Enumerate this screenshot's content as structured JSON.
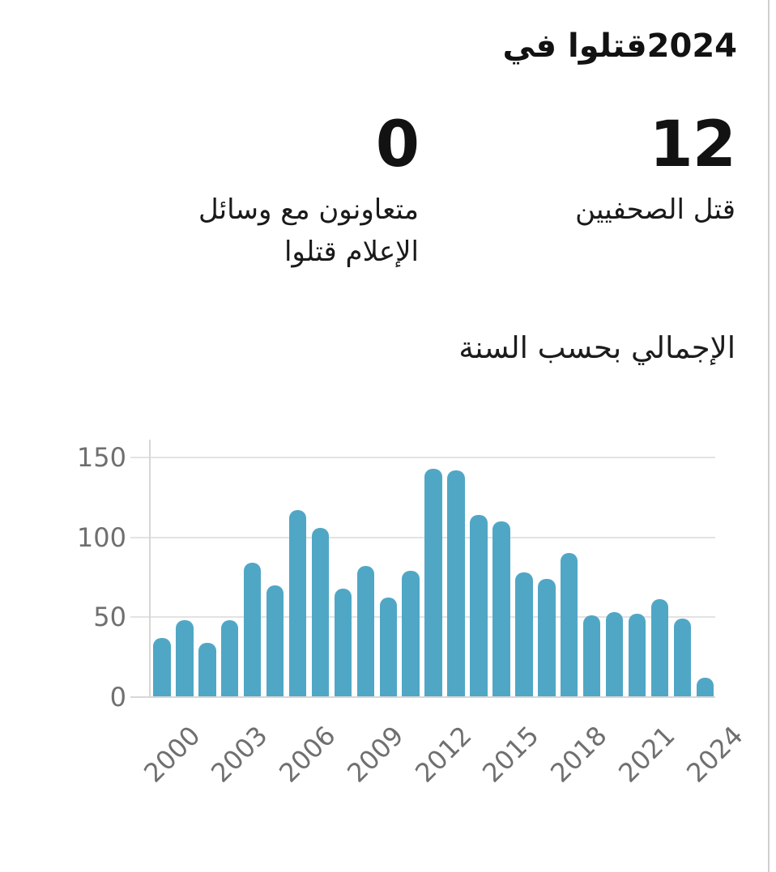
{
  "header": {
    "title_year": "2024",
    "title_text": "قتلوا في"
  },
  "stats": [
    {
      "id": "journalists-killed",
      "value": "12",
      "label": "قتل الصحفيين"
    },
    {
      "id": "media-workers-killed",
      "value": "0",
      "label": "متعاونون مع وسائل\nالإعلام قتلوا"
    }
  ],
  "section_title": "الإجمالي بحسب السنة",
  "colors": {
    "bar": "#50A7C5",
    "grid": "#e3e3e3",
    "axis_line": "#d7d7d7",
    "axis_text": "#6f6f6f",
    "text": "#121212"
  },
  "chart_data": {
    "type": "bar",
    "title": "الإجمالي بحسب السنة",
    "xlabel": "",
    "ylabel": "",
    "categories": [
      2000,
      2001,
      2002,
      2003,
      2004,
      2005,
      2006,
      2007,
      2008,
      2009,
      2010,
      2011,
      2012,
      2013,
      2014,
      2015,
      2016,
      2017,
      2018,
      2019,
      2020,
      2021,
      2022,
      2023,
      2024
    ],
    "values": [
      37,
      48,
      34,
      48,
      84,
      70,
      117,
      106,
      68,
      82,
      62,
      79,
      143,
      142,
      114,
      110,
      78,
      74,
      90,
      51,
      53,
      52,
      61,
      49,
      12
    ],
    "xtick_years": [
      2000,
      2003,
      2006,
      2009,
      2012,
      2015,
      2018,
      2021,
      2024
    ],
    "yticks": [
      0,
      50,
      100,
      150
    ],
    "ylim": [
      0,
      150
    ],
    "grid": true,
    "legend_position": "none",
    "bar_color": "#50A7C5"
  }
}
